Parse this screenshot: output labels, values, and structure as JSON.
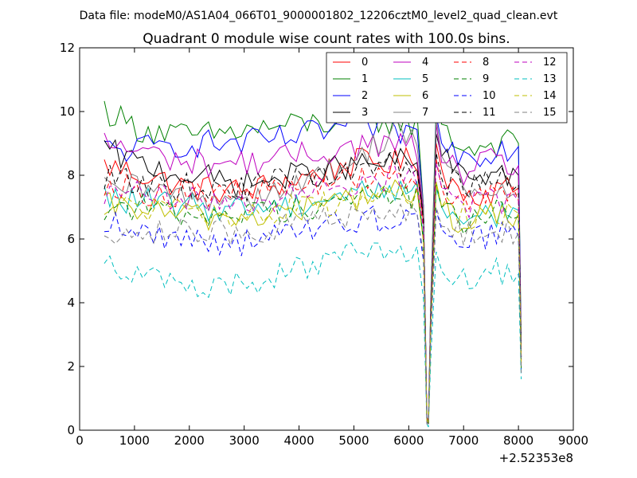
{
  "figure": {
    "suptitle": "Data file: modeM0/AS1A04_066T01_9000001802_12206cztM0_level2_quad_clean.evt",
    "title": "Quadrant 0 module wise count rates with 100.0s bins."
  },
  "chart_data": {
    "type": "line",
    "title": "Quadrant 0 module wise count rates with 100.0s bins.",
    "xlabel": "",
    "ylabel": "",
    "x_offset_label": "+2.52353e8",
    "xlim": [
      0,
      9000
    ],
    "ylim": [
      0,
      12
    ],
    "x_ticks": [
      0,
      1000,
      2000,
      3000,
      4000,
      5000,
      6000,
      7000,
      8000,
      9000
    ],
    "y_ticks": [
      0,
      2,
      4,
      6,
      8,
      10,
      12
    ],
    "grid": false,
    "legend": {
      "position": "top-right",
      "columns": 4
    },
    "bin_size_s": 100,
    "x_anchors": [
      450,
      1000,
      2000,
      3000,
      4000,
      5000,
      5800,
      6200,
      6270,
      6330,
      6360,
      6400,
      6500,
      6600,
      7000,
      7500,
      8000,
      8050
    ],
    "series": [
      {
        "name": "0",
        "color": "#ff0000",
        "dash": "solid",
        "values": [
          8.3,
          8.1,
          7.6,
          7.5,
          7.9,
          8.4,
          8.4,
          8.5,
          6.5,
          0.4,
          0.3,
          3.5,
          9.0,
          8.2,
          7.4,
          7.5,
          7.6,
          2.6
        ]
      },
      {
        "name": "1",
        "color": "#008000",
        "dash": "solid",
        "values": [
          10.1,
          9.5,
          9.2,
          9.4,
          9.6,
          9.7,
          9.7,
          9.6,
          7.0,
          0.3,
          0.3,
          4.0,
          10.2,
          9.6,
          8.8,
          9.0,
          9.0,
          2.7
        ]
      },
      {
        "name": "2",
        "color": "#0000ff",
        "dash": "solid",
        "values": [
          8.8,
          8.8,
          9.0,
          9.0,
          9.2,
          9.6,
          9.4,
          9.3,
          7.0,
          0.3,
          0.2,
          3.8,
          9.9,
          9.0,
          8.6,
          8.8,
          8.9,
          2.3
        ]
      },
      {
        "name": "3",
        "color": "#000000",
        "dash": "solid",
        "values": [
          8.8,
          8.4,
          8.0,
          7.7,
          8.0,
          8.3,
          8.4,
          8.5,
          6.7,
          0.3,
          0.2,
          3.6,
          9.3,
          8.6,
          7.9,
          8.1,
          8.0,
          2.3
        ]
      },
      {
        "name": "4",
        "color": "#bf00bf",
        "dash": "solid",
        "values": [
          9.0,
          8.8,
          8.4,
          8.4,
          8.6,
          8.9,
          9.0,
          8.8,
          6.9,
          0.3,
          0.2,
          3.8,
          9.6,
          8.4,
          8.1,
          8.4,
          8.3,
          2.2
        ]
      },
      {
        "name": "5",
        "color": "#00bfbf",
        "dash": "solid",
        "values": [
          7.3,
          7.2,
          7.0,
          7.0,
          7.1,
          7.5,
          7.6,
          7.4,
          6.0,
          0.3,
          0.2,
          3.2,
          7.6,
          7.0,
          6.7,
          6.8,
          6.9,
          2.0
        ]
      },
      {
        "name": "6",
        "color": "#bfbf00",
        "dash": "solid",
        "values": [
          7.0,
          7.0,
          6.7,
          6.7,
          6.9,
          7.3,
          7.5,
          7.4,
          5.9,
          0.3,
          0.2,
          3.1,
          7.8,
          7.0,
          6.4,
          6.7,
          6.8,
          2.0
        ]
      },
      {
        "name": "7",
        "color": "#808080",
        "dash": "solid",
        "values": [
          7.5,
          7.6,
          7.3,
          7.3,
          7.7,
          8.4,
          9.6,
          8.9,
          7.0,
          0.3,
          0.2,
          3.8,
          9.8,
          8.6,
          7.5,
          7.4,
          7.4,
          2.1
        ]
      },
      {
        "name": "8",
        "color": "#ff0000",
        "dash": "dashed",
        "values": [
          7.8,
          7.5,
          7.4,
          7.4,
          7.7,
          8.0,
          8.1,
          7.9,
          6.4,
          0.3,
          0.2,
          3.4,
          8.5,
          7.6,
          7.1,
          7.3,
          7.2,
          2.1
        ]
      },
      {
        "name": "9",
        "color": "#008000",
        "dash": "dashed",
        "values": [
          7.0,
          7.0,
          6.8,
          6.8,
          7.0,
          7.3,
          7.4,
          7.3,
          5.9,
          0.3,
          0.2,
          3.1,
          7.7,
          7.0,
          6.6,
          6.8,
          6.7,
          1.9
        ]
      },
      {
        "name": "10",
        "color": "#0000ff",
        "dash": "dashed",
        "values": [
          6.6,
          6.2,
          6.0,
          5.9,
          6.2,
          6.6,
          6.7,
          6.6,
          5.3,
          0.2,
          0.2,
          2.8,
          6.9,
          6.3,
          6.0,
          6.1,
          6.1,
          1.8
        ]
      },
      {
        "name": "11",
        "color": "#000000",
        "dash": "dashed",
        "values": [
          7.9,
          7.8,
          7.6,
          7.6,
          7.9,
          8.2,
          8.3,
          8.2,
          6.6,
          0.3,
          0.2,
          3.5,
          8.7,
          7.9,
          7.6,
          7.8,
          7.7,
          2.2
        ]
      },
      {
        "name": "12",
        "color": "#bf00bf",
        "dash": "dashed",
        "values": [
          7.4,
          7.4,
          7.2,
          7.2,
          7.4,
          7.8,
          8.0,
          7.9,
          6.3,
          0.3,
          0.2,
          3.3,
          8.4,
          7.6,
          7.0,
          7.2,
          7.2,
          2.0
        ]
      },
      {
        "name": "13",
        "color": "#00bfbf",
        "dash": "dashed",
        "values": [
          5.5,
          4.9,
          4.4,
          4.6,
          5.1,
          5.5,
          5.4,
          5.3,
          4.1,
          0.2,
          0.1,
          2.2,
          5.6,
          5.0,
          4.8,
          5.0,
          4.9,
          1.6
        ]
      },
      {
        "name": "14",
        "color": "#bfbf00",
        "dash": "dashed",
        "values": [
          7.0,
          7.0,
          6.8,
          6.7,
          7.0,
          7.3,
          7.4,
          7.3,
          5.9,
          0.3,
          0.2,
          3.1,
          7.7,
          7.0,
          6.7,
          6.8,
          6.8,
          2.0
        ]
      },
      {
        "name": "15",
        "color": "#808080",
        "dash": "dashed",
        "values": [
          6.3,
          6.3,
          6.2,
          6.2,
          6.4,
          6.8,
          6.9,
          6.8,
          5.5,
          0.2,
          0.2,
          2.9,
          7.0,
          6.4,
          6.1,
          6.3,
          6.2,
          1.8
        ]
      }
    ]
  }
}
